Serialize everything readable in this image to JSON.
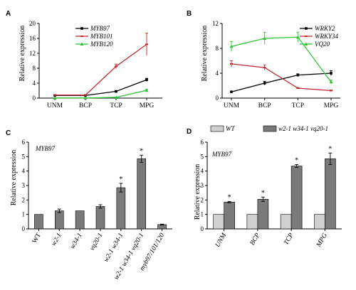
{
  "chart_data": [
    {
      "panel": "A",
      "type": "line",
      "ylabel": "Relative expression",
      "categories": [
        "UNM",
        "BCP",
        "TCP",
        "MPG"
      ],
      "ylim": [
        0,
        20
      ],
      "yticks": [
        0,
        4,
        8,
        12,
        16,
        20
      ],
      "legend_position": "top-left",
      "series": [
        {
          "name": "MYB97",
          "color": "#000000",
          "values": [
            0.7,
            0.7,
            1.8,
            4.9
          ],
          "errors": [
            0.1,
            0.1,
            0.2,
            0.4
          ]
        },
        {
          "name": "MYB101",
          "color": "#c0282d",
          "values": [
            0.8,
            0.8,
            8.5,
            14.4
          ],
          "errors": [
            0.1,
            0.1,
            0.6,
            3.0
          ]
        },
        {
          "name": "MYB120",
          "color": "#2ec436",
          "values": [
            0.05,
            0.05,
            0.2,
            2.1
          ],
          "errors": [
            0.02,
            0.02,
            0.1,
            0.3
          ]
        }
      ]
    },
    {
      "panel": "B",
      "type": "line",
      "ylabel": "Relative expression",
      "categories": [
        "UNM",
        "BCP",
        "TCP",
        "MPG"
      ],
      "ylim": [
        0,
        12
      ],
      "yticks": [
        0,
        4,
        8,
        12
      ],
      "legend_position": "top-right",
      "series": [
        {
          "name": "WRKY2",
          "color": "#000000",
          "values": [
            1.0,
            2.4,
            3.7,
            4.0
          ],
          "errors": [
            0.1,
            0.3,
            0.2,
            0.4
          ]
        },
        {
          "name": "WRKY34",
          "color": "#c0282d",
          "values": [
            5.5,
            4.9,
            1.6,
            1.2
          ],
          "errors": [
            0.5,
            0.4,
            0.1,
            0.1
          ]
        },
        {
          "name": "VQ20",
          "color": "#2ec436",
          "values": [
            8.3,
            9.6,
            9.8,
            2.6
          ],
          "errors": [
            0.8,
            1.0,
            0.8,
            0.3
          ]
        }
      ]
    },
    {
      "panel": "C",
      "type": "bar",
      "title": "MYB97",
      "ylabel": "Relative expression",
      "categories": [
        "WT",
        "w2-1",
        "w34-1",
        "vq20-1",
        "w2-1 w34-1",
        "w2-1 w34-1 vq20-1",
        "myb97/101/120"
      ],
      "ylim": [
        0,
        6
      ],
      "yticks": [
        0,
        1,
        2,
        3,
        4,
        5,
        6
      ],
      "values": [
        1.0,
        1.25,
        1.25,
        1.55,
        2.85,
        4.85,
        0.3
      ],
      "errors": [
        0.0,
        0.12,
        0.0,
        0.12,
        0.3,
        0.25,
        0.03
      ],
      "significance": [
        "",
        "",
        "",
        "",
        "*",
        "*",
        ""
      ]
    },
    {
      "panel": "D",
      "type": "bar",
      "title": "MYB97",
      "ylabel": "Relative expression",
      "categories": [
        "UNM",
        "BCP",
        "TCP",
        "MPG"
      ],
      "ylim": [
        0,
        6
      ],
      "yticks": [
        0,
        1,
        2,
        3,
        4,
        5,
        6
      ],
      "legend_position": "top",
      "series": [
        {
          "name": "WT",
          "color": "#cfcfcf",
          "values": [
            1.0,
            1.0,
            1.0,
            1.0
          ],
          "errors": [
            0,
            0,
            0,
            0
          ]
        },
        {
          "name": "w2-1 w34-1 vq20-1",
          "color": "#7a7a7a",
          "values": [
            1.85,
            2.05,
            4.35,
            4.85
          ],
          "errors": [
            0.05,
            0.15,
            0.1,
            0.4
          ]
        }
      ],
      "significance": [
        "*",
        "*",
        "*",
        "*"
      ]
    }
  ]
}
